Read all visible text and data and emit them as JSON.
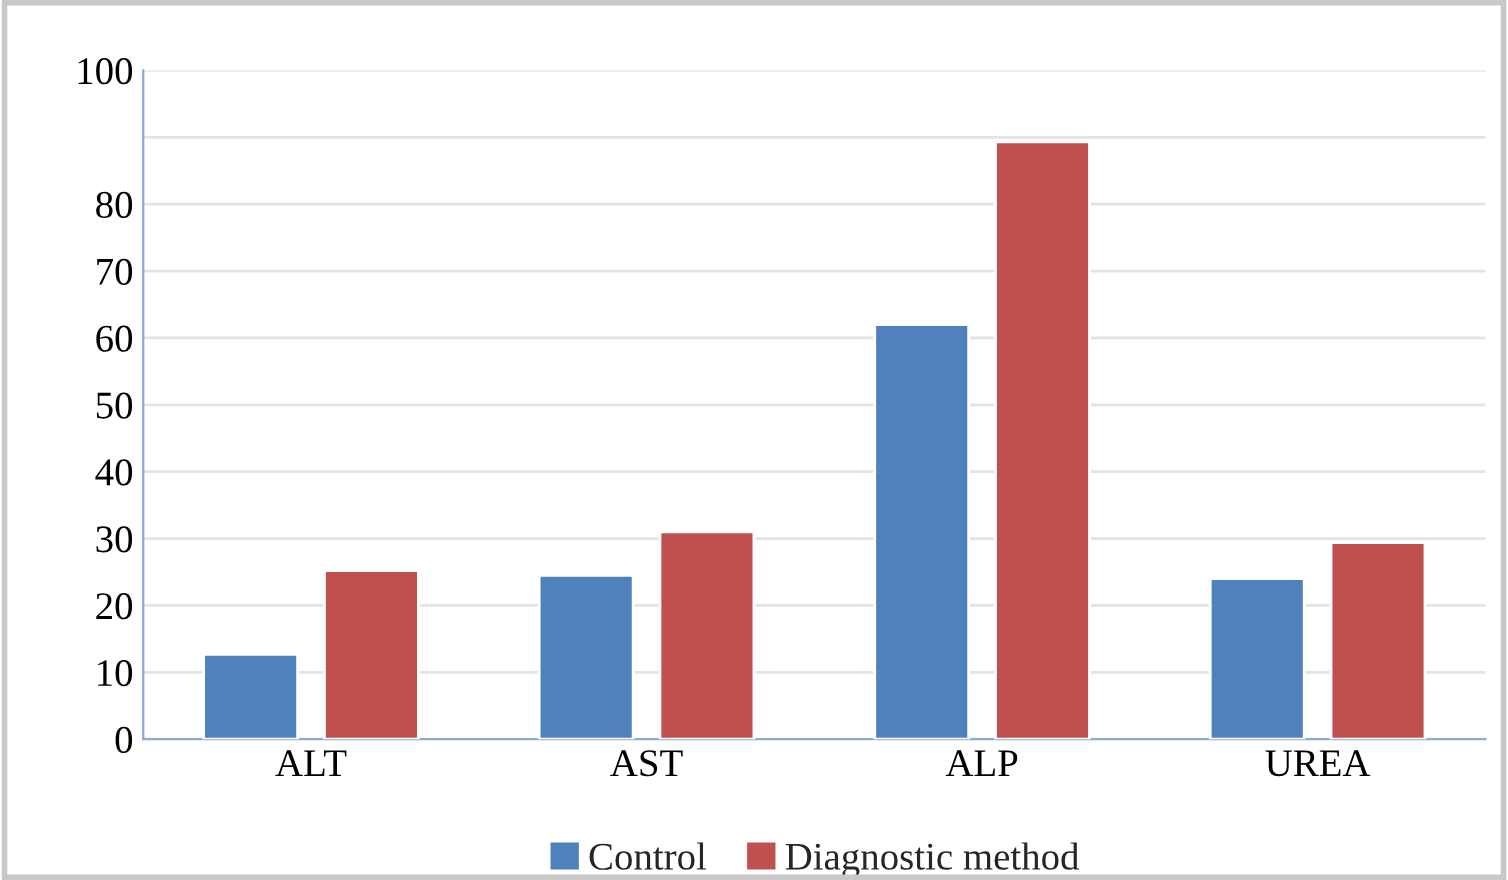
{
  "chart_data": {
    "type": "bar",
    "categories": [
      "ALT",
      "AST",
      "ALP",
      "UREA"
    ],
    "series": [
      {
        "name": "Control",
        "color": "#4f81bd",
        "values": [
          12.7,
          24.5,
          62,
          24
        ]
      },
      {
        "name": "Diagnostic method",
        "color": "#c0504d",
        "values": [
          25.2,
          31,
          89.3,
          29.4
        ]
      }
    ],
    "ylim": [
      0,
      100
    ],
    "yticks": [
      0,
      10,
      20,
      30,
      40,
      50,
      60,
      70,
      80,
      {
        "value": 90,
        "label": null
      },
      100
    ],
    "grid": "y",
    "legend": "bottom"
  }
}
